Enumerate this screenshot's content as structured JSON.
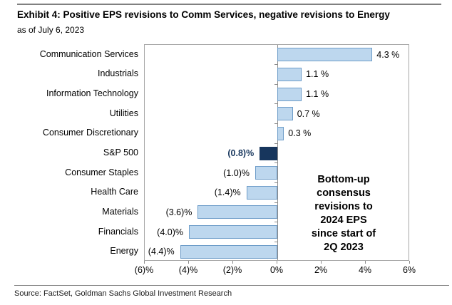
{
  "header": {
    "title": "Exhibit 4: Positive EPS revisions to Comm Services, negative revisions to Energy",
    "subtitle": "as of July 6, 2023"
  },
  "chart_data": {
    "type": "bar",
    "orientation": "horizontal",
    "title": "Exhibit 4: Positive EPS revisions to Comm Services, negative revisions to Energy",
    "subtitle": "as of July 6, 2023",
    "categories": [
      "Communication Services",
      "Industrials",
      "Information Technology",
      "Utilities",
      "Consumer Discretionary",
      "S&P 500",
      "Consumer Staples",
      "Health Care",
      "Materials",
      "Financials",
      "Energy"
    ],
    "values": [
      4.3,
      1.1,
      1.1,
      0.7,
      0.3,
      -0.8,
      -1.0,
      -1.4,
      -3.6,
      -4.0,
      -4.4
    ],
    "value_labels": [
      "4.3 %",
      "1.1 %",
      "1.1 %",
      "0.7 %",
      "0.3 %",
      "(0.8)%",
      "(1.0)%",
      "(1.4)%",
      "(3.6)%",
      "(4.0)%",
      "(4.4)%"
    ],
    "highlight_category": "S&P 500",
    "annotation": "Bottom-up\nconsensus\nrevisions to\n2024 EPS\nsince start of\n2Q 2023",
    "xlim": [
      -6,
      6
    ],
    "x_ticks": {
      "values": [
        -6,
        -4,
        -2,
        0,
        2,
        4,
        6
      ],
      "labels": [
        "(6)%",
        "(4)%",
        "(2)%",
        "0%",
        "2%",
        "4%",
        "6%"
      ]
    },
    "grid": false,
    "legend": false,
    "colors": {
      "bar_fill": "#BDD7EE",
      "bar_border": "#6E9DC9",
      "highlight_fill": "#17365D",
      "highlight_border": "#17365D",
      "highlight_label_color": "#17365D",
      "axis_gray": "#8C8C8C"
    }
  },
  "footer": {
    "source": "Source: FactSet, Goldman Sachs Global Investment Research"
  }
}
